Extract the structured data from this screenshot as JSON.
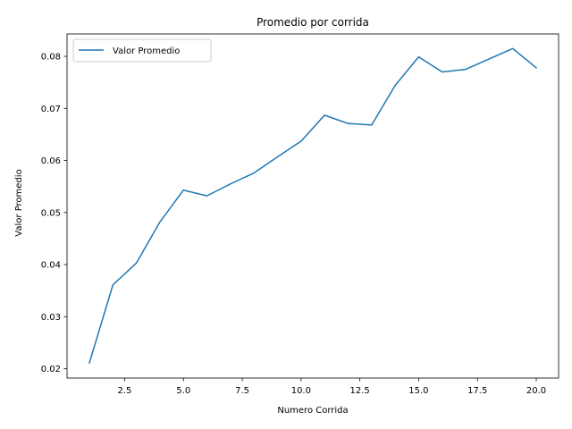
{
  "chart_data": {
    "type": "line",
    "title": "Promedio por corrida",
    "xlabel": "Numero Corrida",
    "ylabel": "Valor Promedio",
    "xlim": [
      0.05,
      20.95
    ],
    "ylim": [
      0.0182,
      0.0843
    ],
    "xticks": [
      2.5,
      5.0,
      7.5,
      10.0,
      12.5,
      15.0,
      17.5,
      20.0
    ],
    "xtick_labels": [
      "2.5",
      "5.0",
      "7.5",
      "10.0",
      "12.5",
      "15.0",
      "17.5",
      "20.0"
    ],
    "yticks": [
      0.02,
      0.03,
      0.04,
      0.05,
      0.06,
      0.07,
      0.08
    ],
    "ytick_labels": [
      "0.02",
      "0.03",
      "0.04",
      "0.05",
      "0.06",
      "0.07",
      "0.08"
    ],
    "grid": false,
    "legend_position": "top-left",
    "series": [
      {
        "name": "Valor Promedio",
        "color": "#1f77b4",
        "x": [
          1,
          2,
          3,
          4,
          5,
          6,
          7,
          8,
          9,
          10,
          11,
          12,
          13,
          14,
          15,
          16,
          17,
          18,
          19,
          20
        ],
        "values": [
          0.0211,
          0.0361,
          0.0403,
          0.0482,
          0.0543,
          0.0532,
          0.0555,
          0.0576,
          0.0607,
          0.0637,
          0.0687,
          0.0671,
          0.0668,
          0.0744,
          0.0799,
          0.077,
          0.0775,
          0.0795,
          0.0815,
          0.0778
        ]
      }
    ]
  }
}
